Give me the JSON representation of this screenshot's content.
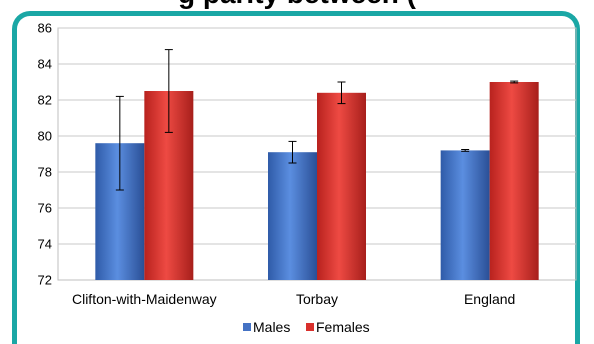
{
  "title_fragment": "g         parity between (",
  "chart_data": {
    "type": "bar",
    "categories": [
      "Clifton-with-Maidenway",
      "Torbay",
      "England"
    ],
    "series": [
      {
        "name": "Males",
        "values": [
          79.6,
          79.1,
          79.2
        ],
        "error_low": [
          77.0,
          78.5,
          79.15
        ],
        "error_high": [
          82.2,
          79.7,
          79.25
        ],
        "color": "#4472c4"
      },
      {
        "name": "Females",
        "values": [
          82.5,
          82.4,
          83.0
        ],
        "error_low": [
          80.2,
          81.8,
          82.95
        ],
        "error_high": [
          84.8,
          83.0,
          83.05
        ],
        "color": "#d9302c"
      }
    ],
    "ylim": [
      72,
      86
    ],
    "yticks": [
      "72",
      "74",
      "76",
      "78",
      "80",
      "82",
      "84",
      "86"
    ],
    "grid": true,
    "legend": "bottom"
  }
}
